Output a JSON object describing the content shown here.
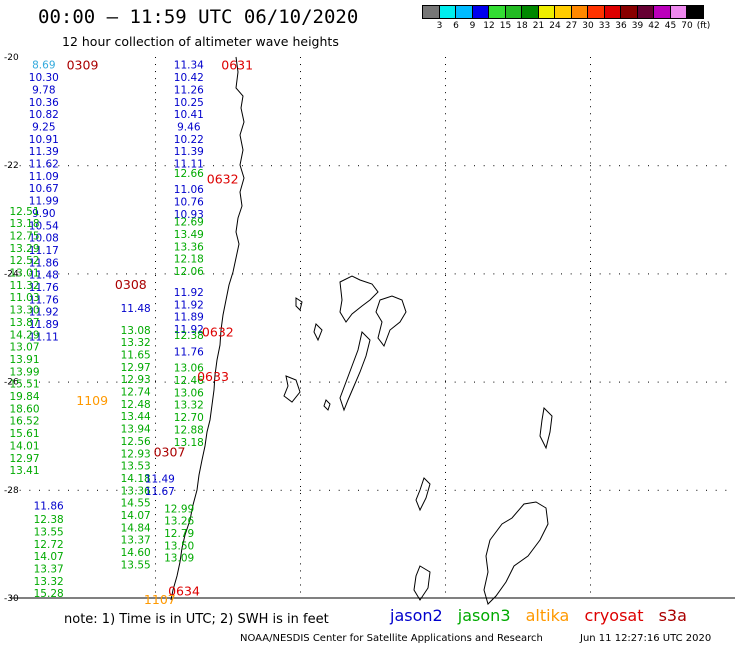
{
  "header": {
    "title": "00:00 – 11:59 UTC 06/10/2020",
    "subtitle": "12 hour collection of altimeter wave heights"
  },
  "legend": {
    "colors": [
      "#777777",
      "#00eeee",
      "#00bbff",
      "#0000ee",
      "#33dd33",
      "#22bb22",
      "#008800",
      "#eeee00",
      "#ffcc00",
      "#ff8800",
      "#ff3300",
      "#dd0000",
      "#880000",
      "#660033",
      "#bb00bb",
      "#ee88ee",
      "#000000"
    ],
    "labels": [
      "3",
      "6",
      "9",
      "12",
      "15",
      "18",
      "21",
      "24",
      "27",
      "30",
      "33",
      "36",
      "39",
      "42",
      "45",
      "70",
      "(ft)"
    ]
  },
  "axes": {
    "x_ticks": [
      "-75",
      "-72",
      "-69",
      "-66",
      "-63",
      "-60"
    ],
    "y_ticks": [
      "-20",
      "-22",
      "-24",
      "-26",
      "-28",
      "-30"
    ]
  },
  "satellites": {
    "jason2": {
      "name": "jason2",
      "color": "#0000cc"
    },
    "jason3": {
      "name": "jason3",
      "color": "#00aa00"
    },
    "altika": {
      "name": "altika",
      "color": "#ff9900"
    },
    "cryosat": {
      "name": "cryosat",
      "color": "#dd0000"
    },
    "s3a": {
      "name": "s3a",
      "color": "#aa0000"
    }
  },
  "tracks": [
    {
      "sat": "jason2",
      "lon": -74.3,
      "lat": -20.05,
      "values": [
        "8.69",
        "10.30",
        "9.78",
        "10.36",
        "10.82",
        "9.25",
        "10.91",
        "11.39",
        "11.62",
        "11.09",
        "10.67",
        "11.99",
        "9.90",
        "10.54",
        "10.08",
        "11.17",
        "11.86",
        "11.48",
        "11.76",
        "11.76",
        "11.92",
        "11.89",
        "11.11"
      ],
      "first_color": "#33aadd"
    },
    {
      "sat": "jason2",
      "lon": -71.3,
      "lat": -20.05,
      "values": [
        "11.34",
        "10.42",
        "11.26",
        "10.25",
        "10.41",
        "9.46",
        "10.22",
        "11.39",
        "11.11"
      ]
    },
    {
      "sat": "jason3",
      "lon": -71.3,
      "lat": -22.05,
      "values": [
        "12.66"
      ]
    },
    {
      "sat": "jason2",
      "lon": -71.3,
      "lat": -22.35,
      "values": [
        "11.06",
        "10.76",
        "10.93"
      ]
    },
    {
      "sat": "jason3",
      "lon": -71.3,
      "lat": -22.95,
      "values": [
        "12.69",
        "13.49",
        "13.36",
        "12.18",
        "12.06"
      ]
    },
    {
      "sat": "jason2",
      "lon": -71.3,
      "lat": -24.25,
      "values": [
        "11.92",
        "11.92",
        "11.89",
        "11.92"
      ]
    },
    {
      "sat": "jason3",
      "lon": -71.3,
      "lat": -25.05,
      "values": [
        "12.38"
      ]
    },
    {
      "sat": "jason2",
      "lon": -71.3,
      "lat": -25.35,
      "values": [
        "11.76"
      ]
    },
    {
      "sat": "jason3",
      "lon": -71.3,
      "lat": -25.65,
      "values": [
        "13.06",
        "12.46",
        "13.06",
        "13.32",
        "12.70",
        "12.88",
        "13.18"
      ]
    },
    {
      "sat": "jason3",
      "lon": -74.7,
      "lat": -22.75,
      "values": [
        "12.51",
        "13.18",
        "12.75",
        "13.29",
        "12.52",
        "13.01",
        "11.32",
        "11.03",
        "13.30",
        "13.87",
        "14.29",
        "13.07",
        "13.91",
        "13.99",
        "15.51",
        "19.84",
        "18.60",
        "16.52",
        "15.61",
        "14.01",
        "12.97",
        "13.41"
      ]
    },
    {
      "sat": "jason3",
      "lon": -72.4,
      "lat": -24.95,
      "values": [
        "13.08",
        "13.32",
        "11.65",
        "12.97",
        "12.93",
        "12.74",
        "12.48",
        "13.44",
        "13.94",
        "12.56",
        "12.93",
        "13.53",
        "14.18",
        "13.36",
        "14.55",
        "14.07",
        "14.84",
        "13.37",
        "14.60",
        "13.55"
      ]
    },
    {
      "sat": "jason2",
      "lon": -72.4,
      "lat": -24.55,
      "values": [
        "11.48"
      ]
    },
    {
      "sat": "jason2",
      "lon": -71.9,
      "lat": -27.7,
      "values": [
        "11.49",
        "11.67"
      ]
    },
    {
      "sat": "jason3",
      "lon": -71.5,
      "lat": -28.25,
      "values": [
        "12.99",
        "13.26",
        "12.79",
        "13.50",
        "13.09"
      ]
    },
    {
      "sat": "jason2",
      "lon": -74.2,
      "lat": -28.2,
      "values": [
        "11.86"
      ]
    },
    {
      "sat": "jason3",
      "lon": -74.2,
      "lat": -28.45,
      "values": [
        "12.38",
        "13.55",
        "12.72",
        "14.07",
        "13.37",
        "13.32",
        "15.28"
      ]
    }
  ],
  "pass_labels": [
    {
      "text": "0309",
      "sat": "s3a",
      "lon": -73.5,
      "lat": -20.05
    },
    {
      "text": "0631",
      "sat": "cryosat",
      "lon": -70.3,
      "lat": -20.05
    },
    {
      "text": "0632",
      "sat": "cryosat",
      "lon": -70.6,
      "lat": -22.15
    },
    {
      "text": "0308",
      "sat": "s3a",
      "lon": -72.5,
      "lat": -24.1
    },
    {
      "text": "0632",
      "sat": "cryosat",
      "lon": -70.7,
      "lat": -24.98
    },
    {
      "text": "0633",
      "sat": "cryosat",
      "lon": -70.8,
      "lat": -25.8
    },
    {
      "text": "1109",
      "sat": "altika",
      "lon": -73.3,
      "lat": -26.25
    },
    {
      "text": "0307",
      "sat": "s3a",
      "lon": -71.7,
      "lat": -27.2
    },
    {
      "text": "0634",
      "sat": "cryosat",
      "lon": -71.4,
      "lat": -29.77
    },
    {
      "text": "1107",
      "sat": "altika",
      "lon": -71.9,
      "lat": -29.93
    }
  ],
  "footer": {
    "note": "note:  1) Time is in UTC;  2) SWH is in feet",
    "credit": "NOAA/NESDIS Center for Satellite Applications and Research",
    "timestamp": "Jun 11 12:27:16 UTC 2020"
  }
}
